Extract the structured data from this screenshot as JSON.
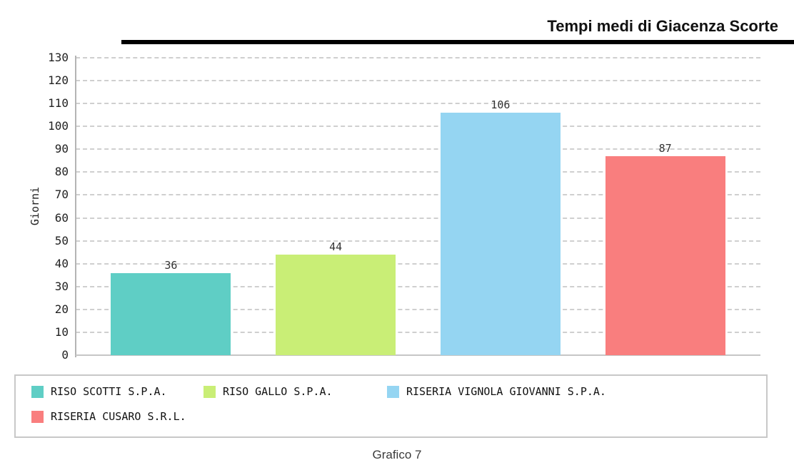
{
  "header": {
    "title": "Tempi medi di Giacenza Scorte"
  },
  "chart_data": {
    "type": "bar",
    "title": "Tempi medi di Giacenza Scorte",
    "xlabel": "",
    "ylabel": "Giorni",
    "ylim": [
      0,
      130
    ],
    "ytick_step": 10,
    "grid": "horizontal-dashed",
    "legend_position": "bottom-box",
    "categories": [
      "RISO SCOTTI S.P.A.",
      "RISO GALLO S.P.A.",
      "RISERIA VIGNOLA GIOVANNI S.P.A.",
      "RISERIA CUSARO S.R.L."
    ],
    "values": [
      36,
      44,
      106,
      87
    ],
    "value_labels": [
      "36",
      "44",
      "106",
      "87"
    ],
    "colors": [
      "#5fcec5",
      "#c9ee76",
      "#95d5f2",
      "#f97e7e"
    ]
  },
  "colors": {
    "gridline": "#cfcfcf",
    "axis_line": "#b4b4b4",
    "title_rule": "#000000",
    "text": "#222222"
  },
  "caption": "Grafico 7"
}
